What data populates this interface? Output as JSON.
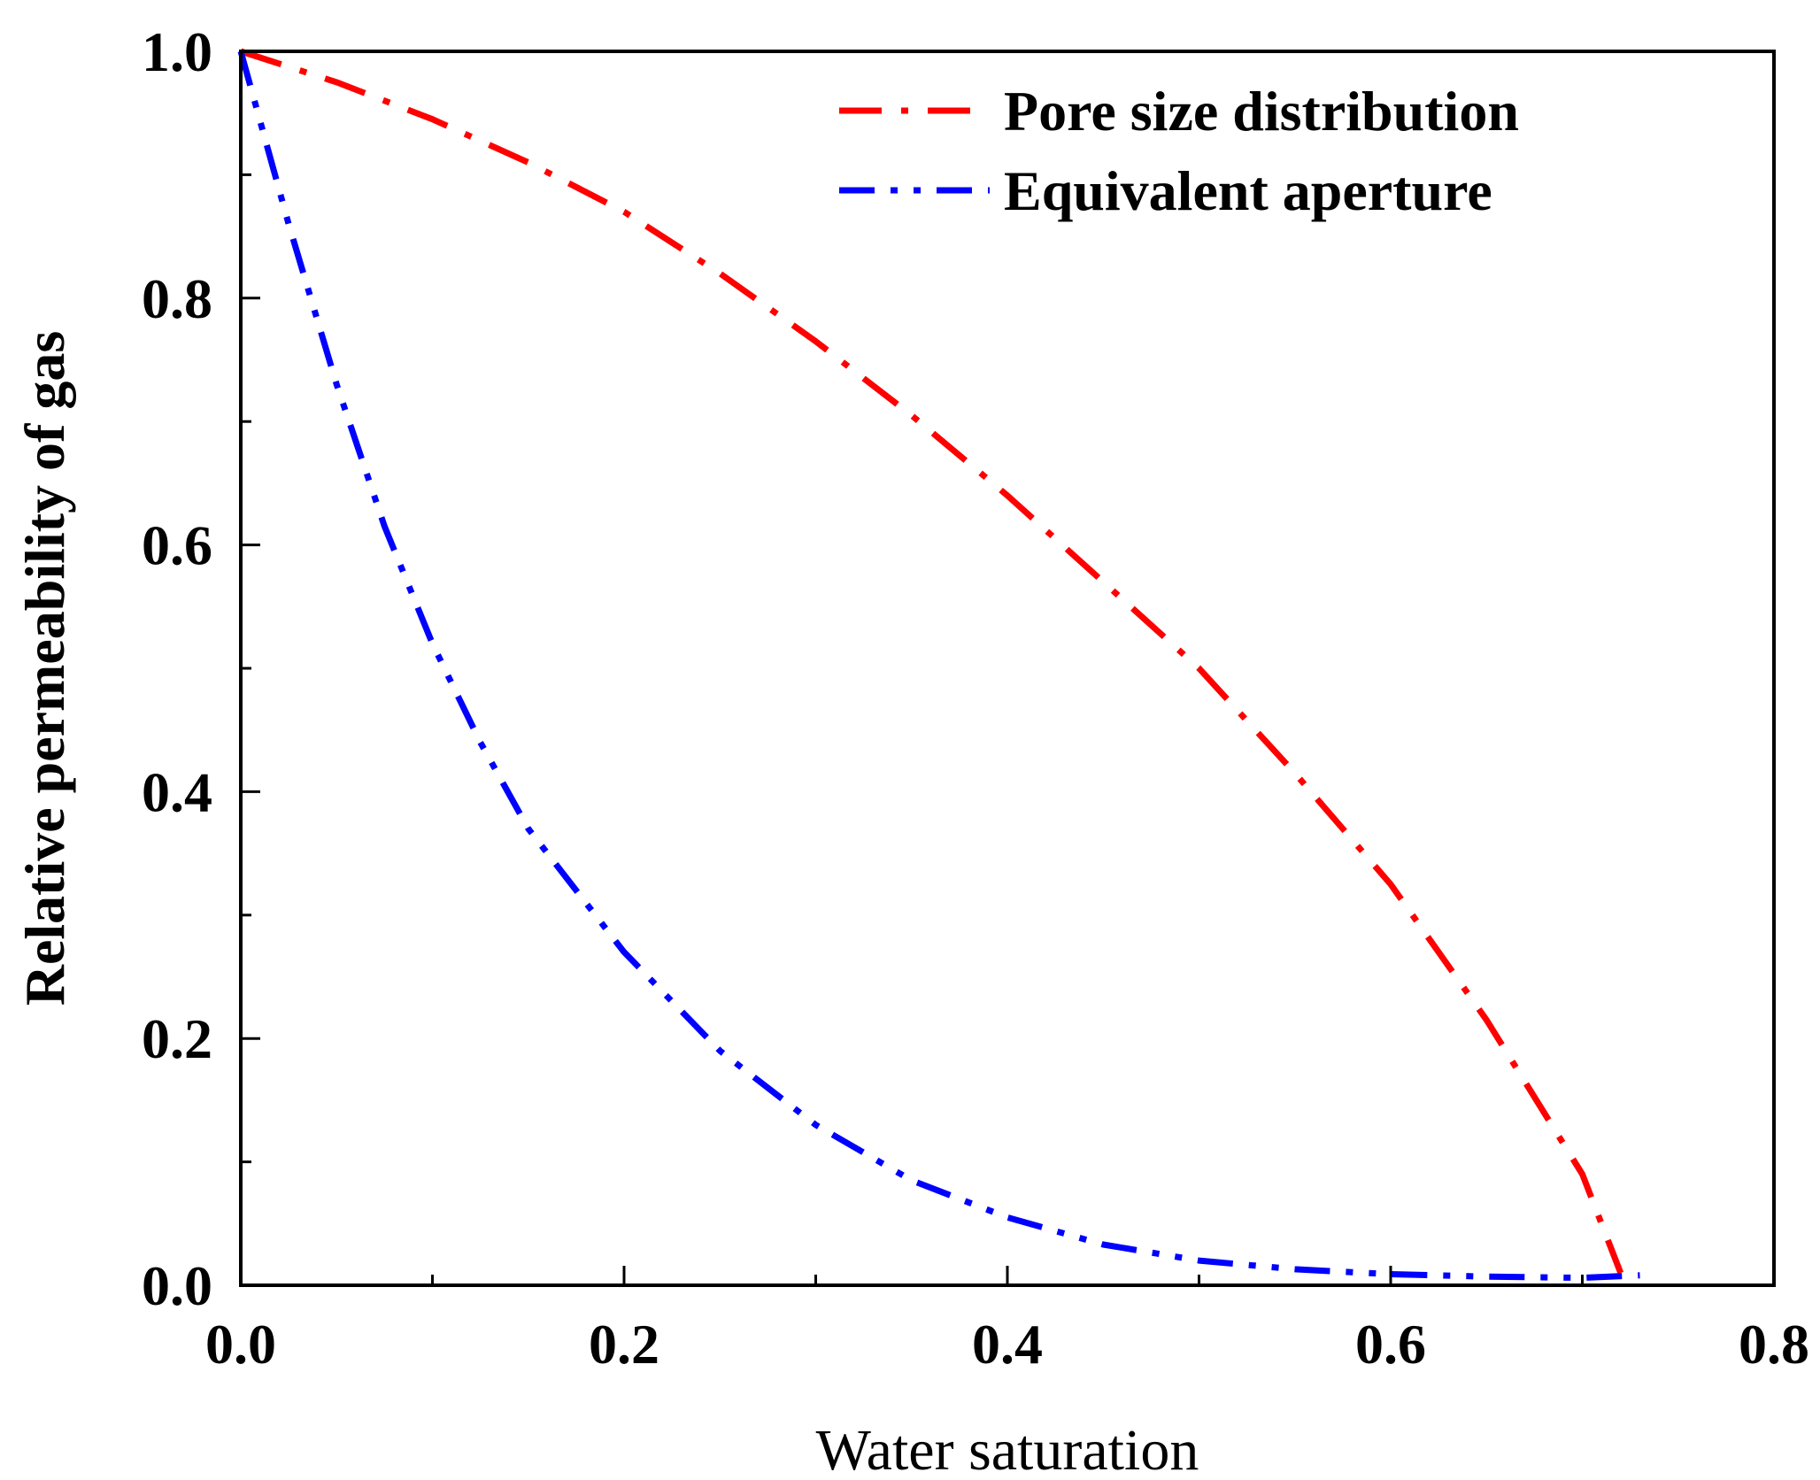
{
  "chart_data": {
    "type": "line",
    "xlabel": "Water saturation",
    "ylabel": "Relative permeability of gas",
    "xlim": [
      0,
      0.8
    ],
    "ylim": [
      0,
      1.0
    ],
    "x_ticks": [
      "0.0",
      "0.2",
      "0.4",
      "0.6",
      "0.8"
    ],
    "y_ticks": [
      "0.0",
      "0.2",
      "0.4",
      "0.6",
      "0.8",
      "1.0"
    ],
    "x_tick_values": [
      0,
      0.2,
      0.4,
      0.6,
      0.8
    ],
    "y_tick_values": [
      0,
      0.2,
      0.4,
      0.6,
      0.8,
      1.0
    ],
    "x_minor_tick_values": [
      0.1,
      0.3,
      0.5,
      0.7
    ],
    "y_minor_tick_values": [
      0.1,
      0.3,
      0.5,
      0.7,
      0.9
    ],
    "grid": false,
    "legend_position": "top-right",
    "series": [
      {
        "name": "Pore size distribution",
        "color": "#ff0000",
        "line_style": "dash-dot",
        "x": [
          0,
          0.05,
          0.1,
          0.15,
          0.2,
          0.25,
          0.3,
          0.35,
          0.4,
          0.45,
          0.5,
          0.55,
          0.6,
          0.65,
          0.7,
          0.72
        ],
        "y": [
          1.0,
          0.975,
          0.945,
          0.91,
          0.87,
          0.82,
          0.765,
          0.705,
          0.64,
          0.57,
          0.5,
          0.415,
          0.325,
          0.215,
          0.09,
          0.01
        ]
      },
      {
        "name": "Equivalent aperture",
        "color": "#0000ff",
        "line_style": "dash-dot-dot",
        "x": [
          0,
          0.025,
          0.05,
          0.075,
          0.1,
          0.125,
          0.15,
          0.2,
          0.25,
          0.3,
          0.35,
          0.4,
          0.45,
          0.5,
          0.55,
          0.6,
          0.65,
          0.7,
          0.73
        ],
        "y": [
          1.0,
          0.86,
          0.73,
          0.615,
          0.52,
          0.44,
          0.37,
          0.27,
          0.19,
          0.13,
          0.085,
          0.055,
          0.033,
          0.02,
          0.013,
          0.009,
          0.007,
          0.006,
          0.008
        ]
      }
    ]
  }
}
